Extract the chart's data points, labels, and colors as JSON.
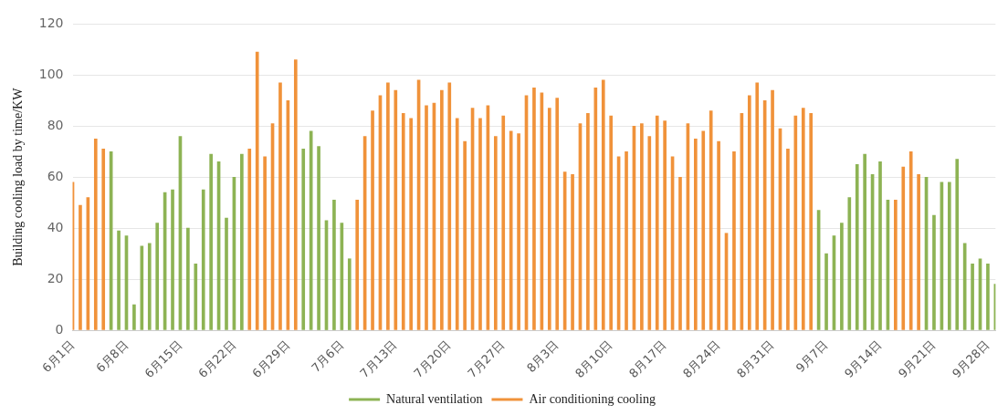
{
  "chart_data": {
    "type": "bar",
    "ylabel": "Building cooling load by time/KW",
    "categories": [
      "6月1日",
      null,
      null,
      null,
      null,
      null,
      null,
      "6月8日",
      null,
      null,
      null,
      null,
      null,
      null,
      "6月15日",
      null,
      null,
      null,
      null,
      null,
      null,
      "6月22日",
      null,
      null,
      null,
      null,
      null,
      null,
      "6月29日",
      null,
      null,
      null,
      null,
      null,
      null,
      "7月6日",
      null,
      null,
      null,
      null,
      null,
      null,
      "7月13日",
      null,
      null,
      null,
      null,
      null,
      null,
      "7月20日",
      null,
      null,
      null,
      null,
      null,
      null,
      "7月27日",
      null,
      null,
      null,
      null,
      null,
      null,
      "8月3日",
      null,
      null,
      null,
      null,
      null,
      null,
      "8月10日",
      null,
      null,
      null,
      null,
      null,
      null,
      "8月17日",
      null,
      null,
      null,
      null,
      null,
      null,
      "8月24日",
      null,
      null,
      null,
      null,
      null,
      null,
      "8月31日",
      null,
      null,
      null,
      null,
      null,
      null,
      "9月7日",
      null,
      null,
      null,
      null,
      null,
      null,
      "9月14日",
      null,
      null,
      null,
      null,
      null,
      null,
      "9月21日",
      null,
      null,
      null,
      null,
      null,
      null,
      "9月28日",
      null
    ],
    "series": [
      {
        "name": "Natural ventilation",
        "color": "#8db354",
        "values": [
          null,
          null,
          null,
          null,
          null,
          70,
          39,
          37,
          10,
          33,
          34,
          42,
          54,
          55,
          76,
          40,
          26,
          55,
          69,
          66,
          44,
          60,
          69,
          null,
          null,
          null,
          null,
          null,
          null,
          null,
          71,
          78,
          72,
          43,
          51,
          42,
          28,
          null,
          null,
          null,
          null,
          null,
          null,
          null,
          null,
          null,
          null,
          null,
          null,
          null,
          null,
          null,
          null,
          null,
          null,
          null,
          null,
          null,
          null,
          null,
          null,
          null,
          null,
          null,
          null,
          null,
          null,
          null,
          null,
          null,
          null,
          null,
          null,
          null,
          null,
          null,
          null,
          null,
          null,
          null,
          null,
          null,
          null,
          null,
          null,
          null,
          null,
          null,
          null,
          null,
          null,
          null,
          null,
          null,
          null,
          null,
          null,
          47,
          30,
          37,
          42,
          52,
          65,
          69,
          61,
          66,
          51,
          null,
          null,
          null,
          null,
          60,
          45,
          58,
          58,
          67,
          34,
          26,
          28,
          26,
          18
        ]
      },
      {
        "name": "Air conditioning cooling",
        "color": "#f0923a",
        "values": [
          58,
          49,
          52,
          75,
          71,
          null,
          null,
          null,
          null,
          null,
          null,
          null,
          null,
          null,
          null,
          null,
          null,
          null,
          null,
          null,
          null,
          null,
          null,
          71,
          109,
          68,
          81,
          97,
          90,
          106,
          null,
          null,
          null,
          null,
          null,
          null,
          null,
          51,
          76,
          86,
          92,
          97,
          94,
          85,
          83,
          98,
          88,
          89,
          94,
          97,
          83,
          74,
          87,
          83,
          88,
          76,
          84,
          78,
          77,
          92,
          95,
          93,
          87,
          91,
          62,
          61,
          81,
          85,
          95,
          98,
          84,
          68,
          70,
          80,
          81,
          76,
          84,
          82,
          68,
          60,
          81,
          75,
          78,
          86,
          74,
          38,
          70,
          85,
          92,
          97,
          90,
          94,
          79,
          71,
          84,
          87,
          85,
          null,
          null,
          null,
          null,
          null,
          null,
          null,
          null,
          null,
          null,
          51,
          64,
          70,
          61,
          null,
          null,
          null,
          null,
          null,
          null,
          null,
          null,
          null,
          null
        ]
      }
    ],
    "ylim": [
      0,
      120
    ],
    "yticks": [
      0,
      20,
      40,
      60,
      80,
      100,
      120
    ],
    "grid": "y",
    "legend": "bottom"
  }
}
